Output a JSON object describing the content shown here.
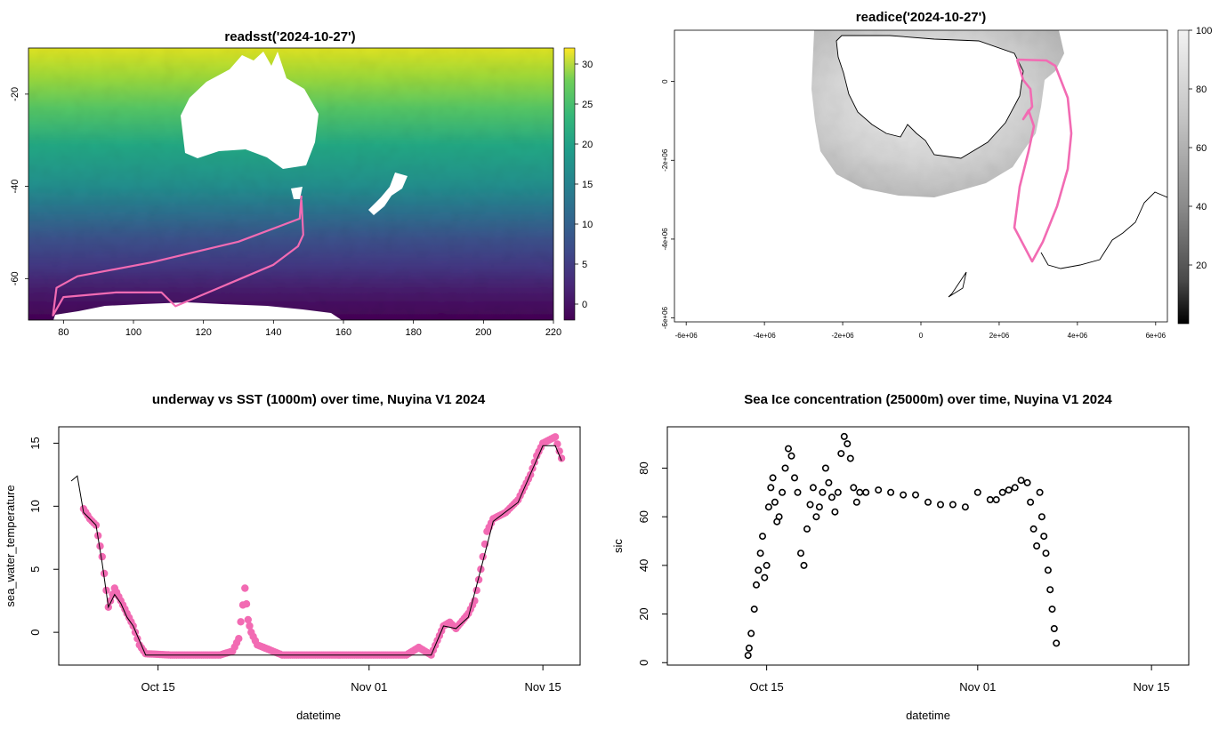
{
  "chart_data": [
    {
      "type": "heatmap",
      "title": "readsst('2024-10-27')",
      "x_ticks": [
        "80",
        "100",
        "120",
        "140",
        "160",
        "180",
        "200",
        "220"
      ],
      "y_ticks": [
        "-20",
        "-40",
        "-60"
      ],
      "xlim": [
        70,
        220
      ],
      "ylim": [
        -69,
        -10
      ],
      "colorbar": {
        "ticks": [
          "30",
          "25",
          "20",
          "15",
          "10",
          "5",
          "0"
        ],
        "range": [
          -2,
          32
        ],
        "palette": "viridis"
      },
      "track_color": "#f26bb3",
      "track": [
        [
          148,
          -42
        ],
        [
          147.5,
          -47
        ],
        [
          130,
          -52
        ],
        [
          105,
          -56.5
        ],
        [
          84,
          -59.5
        ],
        [
          78,
          -62
        ],
        [
          77,
          -68
        ],
        [
          80,
          -64
        ],
        [
          95,
          -63
        ],
        [
          108,
          -63
        ],
        [
          112,
          -66
        ],
        [
          126,
          -61.5
        ],
        [
          140,
          -57
        ],
        [
          147,
          -53
        ],
        [
          148.5,
          -50.5
        ],
        [
          148,
          -43
        ]
      ]
    },
    {
      "type": "heatmap",
      "title": "readice('2024-10-27')",
      "x_ticks": [
        "-6e+06",
        "-4e+06",
        "-2e+06",
        "0",
        "2e+06",
        "4e+06",
        "6e+06"
      ],
      "y_ticks": [
        "0",
        "-2e+06",
        "-4e+06",
        "-6e+06"
      ],
      "xlim": [
        -6300000,
        6300000
      ],
      "ylim": [
        -6100000,
        1300000
      ],
      "colorbar": {
        "ticks": [
          "100",
          "80",
          "60",
          "40",
          "20"
        ],
        "range": [
          0,
          100
        ],
        "palette": "greyscale"
      },
      "track_color": "#f26bb3"
    },
    {
      "type": "scatter",
      "title": "underway vs SST (1000m) over time, Nuyina V1 2024",
      "xlabel": "datetime",
      "ylabel": "sea_water_temperature",
      "x_ticks": [
        "Oct 15",
        "Nov 01",
        "Nov 15"
      ],
      "y_ticks": [
        "0",
        "5",
        "10",
        "15"
      ],
      "xlim": [
        "2024-10-07",
        "2024-11-18"
      ],
      "ylim": [
        -2.6,
        16.3
      ],
      "series": [
        {
          "marker": "pink filled points",
          "color": "#f26bb3",
          "points": [
            [
              "2024-10-09",
              9.8
            ],
            [
              "2024-10-09T12",
              9.0
            ],
            [
              "2024-10-10",
              8.5
            ],
            [
              "2024-10-10T12",
              6.0
            ],
            [
              "2024-10-11",
              2.0
            ],
            [
              "2024-10-11T12",
              3.5
            ],
            [
              "2024-10-12",
              2.5
            ],
            [
              "2024-10-12T12",
              1.5
            ],
            [
              "2024-10-13",
              0.5
            ],
            [
              "2024-10-13T12",
              -1.0
            ],
            [
              "2024-10-14",
              -1.7
            ],
            [
              "2024-10-16",
              -1.8
            ],
            [
              "2024-10-20",
              -1.8
            ],
            [
              "2024-10-21",
              -1.5
            ],
            [
              "2024-10-21T12",
              -0.5
            ],
            [
              "2024-10-22",
              3.5
            ],
            [
              "2024-10-22T06",
              1.0
            ],
            [
              "2024-10-22T12",
              0.0
            ],
            [
              "2024-10-23",
              -1.0
            ],
            [
              "2024-10-25",
              -1.8
            ],
            [
              "2024-10-30",
              -1.8
            ],
            [
              "2024-11-01",
              -1.8
            ],
            [
              "2024-11-04",
              -1.8
            ],
            [
              "2024-11-05",
              -1.2
            ],
            [
              "2024-11-06",
              -1.8
            ],
            [
              "2024-11-07",
              0.5
            ],
            [
              "2024-11-07T12",
              0.8
            ],
            [
              "2024-11-08",
              0.3
            ],
            [
              "2024-11-08T12",
              0.9
            ],
            [
              "2024-11-09",
              1.5
            ],
            [
              "2024-11-09T12",
              2.5
            ],
            [
              "2024-11-10",
              5.0
            ],
            [
              "2024-11-10T12",
              8.0
            ],
            [
              "2024-11-11",
              9.0
            ],
            [
              "2024-11-12",
              9.5
            ],
            [
              "2024-11-13",
              10.5
            ],
            [
              "2024-11-14",
              12.5
            ],
            [
              "2024-11-14T12",
              14.0
            ],
            [
              "2024-11-15",
              15.0
            ],
            [
              "2024-11-16",
              15.5
            ],
            [
              "2024-11-16T12",
              13.8
            ]
          ]
        },
        {
          "marker": "black line",
          "color": "#000000",
          "points": [
            [
              "2024-10-08",
              12.0
            ],
            [
              "2024-10-08T12",
              12.4
            ],
            [
              "2024-10-09",
              9.5
            ],
            [
              "2024-10-10",
              8.5
            ],
            [
              "2024-10-10T12",
              5.5
            ],
            [
              "2024-10-11",
              2.0
            ],
            [
              "2024-10-11T12",
              3.0
            ],
            [
              "2024-10-12",
              2.3
            ],
            [
              "2024-10-12T12",
              1.2
            ],
            [
              "2024-10-13",
              0.5
            ],
            [
              "2024-10-14",
              -1.8
            ],
            [
              "2024-11-01",
              -1.8
            ],
            [
              "2024-11-06",
              -1.8
            ],
            [
              "2024-11-07",
              0.5
            ],
            [
              "2024-11-08",
              0.3
            ],
            [
              "2024-11-09",
              1.2
            ],
            [
              "2024-11-10",
              5.0
            ],
            [
              "2024-11-11",
              8.8
            ],
            [
              "2024-11-13",
              10.3
            ],
            [
              "2024-11-15",
              14.8
            ],
            [
              "2024-11-16",
              14.8
            ],
            [
              "2024-11-16T12",
              13.6
            ]
          ]
        }
      ]
    },
    {
      "type": "scatter",
      "title": "Sea Ice concentration (25000m) over time, Nuyina V1 2024",
      "xlabel": "datetime",
      "ylabel": "sic",
      "x_ticks": [
        "Oct 15",
        "Nov 01",
        "Nov 15"
      ],
      "y_ticks": [
        "0",
        "20",
        "40",
        "60",
        "80"
      ],
      "xlim": [
        "2024-10-07",
        "2024-11-18"
      ],
      "ylim": [
        -1,
        97
      ],
      "series": [
        {
          "marker": "open circles",
          "color": "#000000",
          "points": [
            [
              "2024-10-13T12",
              3
            ],
            [
              "2024-10-13T14",
              6
            ],
            [
              "2024-10-13T18",
              12
            ],
            [
              "2024-10-14",
              22
            ],
            [
              "2024-10-14T04",
              32
            ],
            [
              "2024-10-14T08",
              38
            ],
            [
              "2024-10-14T12",
              45
            ],
            [
              "2024-10-14T16",
              52
            ],
            [
              "2024-10-14T20",
              35
            ],
            [
              "2024-10-15",
              40
            ],
            [
              "2024-10-15T04",
              64
            ],
            [
              "2024-10-15T08",
              72
            ],
            [
              "2024-10-15T12",
              76
            ],
            [
              "2024-10-15T16",
              66
            ],
            [
              "2024-10-15T20",
              58
            ],
            [
              "2024-10-16",
              60
            ],
            [
              "2024-10-16T06",
              70
            ],
            [
              "2024-10-16T12",
              80
            ],
            [
              "2024-10-16T18",
              88
            ],
            [
              "2024-10-17",
              85
            ],
            [
              "2024-10-17T06",
              76
            ],
            [
              "2024-10-17T12",
              70
            ],
            [
              "2024-10-17T18",
              45
            ],
            [
              "2024-10-18",
              40
            ],
            [
              "2024-10-18T06",
              55
            ],
            [
              "2024-10-18T12",
              65
            ],
            [
              "2024-10-18T18",
              72
            ],
            [
              "2024-10-19",
              60
            ],
            [
              "2024-10-19T06",
              64
            ],
            [
              "2024-10-19T12",
              70
            ],
            [
              "2024-10-19T18",
              80
            ],
            [
              "2024-10-20",
              74
            ],
            [
              "2024-10-20T06",
              68
            ],
            [
              "2024-10-20T12",
              62
            ],
            [
              "2024-10-20T18",
              70
            ],
            [
              "2024-10-21",
              86
            ],
            [
              "2024-10-21T06",
              93
            ],
            [
              "2024-10-21T12",
              90
            ],
            [
              "2024-10-21T18",
              84
            ],
            [
              "2024-10-22",
              72
            ],
            [
              "2024-10-22T06",
              66
            ],
            [
              "2024-10-22T12",
              70
            ],
            [
              "2024-10-23",
              70
            ],
            [
              "2024-10-24",
              71
            ],
            [
              "2024-10-25",
              70
            ],
            [
              "2024-10-26",
              69
            ],
            [
              "2024-10-27",
              69
            ],
            [
              "2024-10-28",
              66
            ],
            [
              "2024-10-29",
              65
            ],
            [
              "2024-10-30",
              65
            ],
            [
              "2024-10-31",
              64
            ],
            [
              "2024-11-01",
              70
            ],
            [
              "2024-11-02",
              67
            ],
            [
              "2024-11-02T12",
              67
            ],
            [
              "2024-11-03",
              70
            ],
            [
              "2024-11-03T12",
              71
            ],
            [
              "2024-11-04",
              72
            ],
            [
              "2024-11-04T12",
              75
            ],
            [
              "2024-11-05",
              74
            ],
            [
              "2024-11-05T06",
              66
            ],
            [
              "2024-11-05T12",
              55
            ],
            [
              "2024-11-05T18",
              48
            ],
            [
              "2024-11-06",
              70
            ],
            [
              "2024-11-06T04",
              60
            ],
            [
              "2024-11-06T08",
              52
            ],
            [
              "2024-11-06T12",
              45
            ],
            [
              "2024-11-06T16",
              38
            ],
            [
              "2024-11-06T20",
              30
            ],
            [
              "2024-11-07",
              22
            ],
            [
              "2024-11-07T04",
              14
            ],
            [
              "2024-11-07T08",
              8
            ]
          ]
        }
      ]
    }
  ],
  "colors": {
    "track": "#f26bb3",
    "frame": "#000000",
    "background": "#ffffff"
  }
}
